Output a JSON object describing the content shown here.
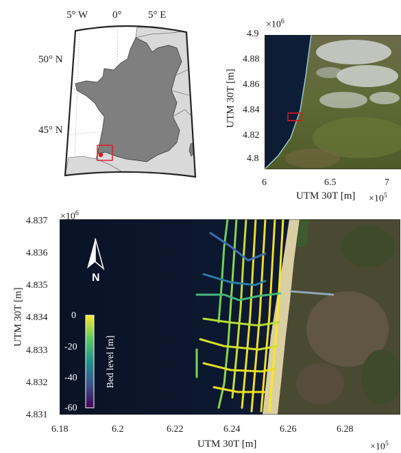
{
  "locator_map": {
    "lon_labels": [
      "5° W",
      "0°",
      "5° E"
    ],
    "lat_labels": [
      "50° N",
      "45° N"
    ]
  },
  "overview_map": {
    "xlabel": "UTM 30T [m]",
    "ylabel": "UTM 30T [m]",
    "x_ticks": [
      "6",
      "6.5",
      "7"
    ],
    "y_ticks": [
      "4.9",
      "4.88",
      "4.86",
      "4.84",
      "4.82",
      "4.8"
    ],
    "x_exponent": "×10^5",
    "y_exponent": "×10^6"
  },
  "main_map": {
    "xlabel": "UTM 30T [m]",
    "ylabel": "UTM 30T [m]",
    "x_ticks": [
      "6.18",
      "6.2",
      "6.22",
      "6.24",
      "6.26",
      "6.28"
    ],
    "y_ticks": [
      "4.837",
      "4.836",
      "4.835",
      "4.834",
      "4.833",
      "4.832",
      "4.831"
    ],
    "x_exponent": "×10^5",
    "y_exponent": "×10^6",
    "north_label": "N",
    "colorbar": {
      "label": "Bed level [m]",
      "ticks": [
        "0",
        "-20",
        "-40",
        "-60"
      ],
      "range": [
        -60,
        0
      ]
    }
  },
  "colors": {
    "land_gray": "#7f7f7f",
    "neighbor_gray": "#d9d9d9",
    "sea_dark": "#0c1628",
    "highlight_red": "#e0141e"
  }
}
